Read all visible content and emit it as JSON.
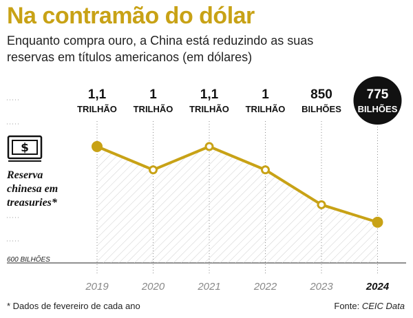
{
  "header": {
    "title": "Na contramão do dólar",
    "subtitle": "Enquanto compra ouro, a China está reduzindo as suas reservas em títulos americanos (em dólares)"
  },
  "legend": {
    "series_label_line1": "Reserva",
    "series_label_line2": "chinesa em",
    "series_label_line3": "treasuries*",
    "icon": "money-icon"
  },
  "axis": {
    "baseline_label": "600 BILHÕES"
  },
  "footer": {
    "footnote": "* Dados de fevereiro de cada ano",
    "source_prefix": "Fonte: ",
    "source_name": "CEIC Data"
  },
  "colors": {
    "accent": "#c8a216",
    "highlight_bg": "#111111",
    "grid": "#999999"
  },
  "chart_data": {
    "type": "line",
    "x": [
      "2019",
      "2020",
      "2021",
      "2022",
      "2023",
      "2024"
    ],
    "values": [
      1100,
      1000,
      1100,
      1000,
      850,
      775
    ],
    "value_labels": [
      {
        "top": "1,1",
        "bottom": "TRILHÃO"
      },
      {
        "top": "1",
        "bottom": "TRILHÃO"
      },
      {
        "top": "1,1",
        "bottom": "TRILHÃO"
      },
      {
        "top": "1",
        "bottom": "TRILHÃO"
      },
      {
        "top": "850",
        "bottom": "BILHÕES"
      },
      {
        "top": "775",
        "bottom": "BILHÕES"
      }
    ],
    "highlight_index": 5,
    "unit": "bilhões de dólares",
    "ylim": [
      600,
      1150
    ]
  }
}
